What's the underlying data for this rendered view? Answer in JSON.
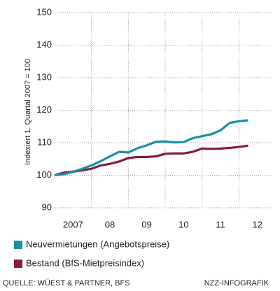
{
  "chart_data": {
    "type": "line",
    "ylabel": "Indexiert 1. Quartal 2007 = 100",
    "x": [
      2007,
      2007.25,
      2007.5,
      2007.75,
      2008,
      2008.25,
      2008.5,
      2008.75,
      2009,
      2009.25,
      2009.5,
      2009.75,
      2010,
      2010.25,
      2010.5,
      2010.75,
      2011,
      2011.25,
      2011.5,
      2011.75,
      2012,
      2012.25
    ],
    "series": [
      {
        "name": "Neuvermietungen (Angebotspreise)",
        "color": "#1a8fa8",
        "values": [
          100,
          100.3,
          101,
          102,
          103,
          104.3,
          105.8,
          107.2,
          107.0,
          108.3,
          109.2,
          110.3,
          110.4,
          110.1,
          110.2,
          111.4,
          112.0,
          112.6,
          113.8,
          116.1,
          116.6,
          116.9
        ]
      },
      {
        "name": "Bestand (BfS-Mietpreisindex)",
        "color": "#8b1a3e",
        "values": [
          100,
          100.8,
          101.1,
          101.5,
          102,
          103,
          103.5,
          104.2,
          105.3,
          105.6,
          105.6,
          105.8,
          106.6,
          106.7,
          106.7,
          107.2,
          108.2,
          108.1,
          108.2,
          108.4,
          108.7,
          109.1
        ]
      }
    ],
    "xlim": [
      2007,
      2013
    ],
    "xticks": [
      {
        "value": 2007.5,
        "label": "2007"
      },
      {
        "value": 2008.5,
        "label": "08"
      },
      {
        "value": 2009.5,
        "label": "09"
      },
      {
        "value": 2010.5,
        "label": "10"
      },
      {
        "value": 2011.5,
        "label": "11"
      },
      {
        "value": 2012.5,
        "label": "12"
      }
    ],
    "xgrid": [
      2008,
      2009,
      2010,
      2011,
      2012
    ],
    "ylim": [
      90,
      150
    ],
    "yticks": [
      90,
      100,
      110,
      120,
      130,
      140,
      150
    ],
    "grid": true,
    "source": "QUELLE: WÜEST & PARTNER, BFS",
    "credit": "NZZ-INFOGRAFIK"
  }
}
